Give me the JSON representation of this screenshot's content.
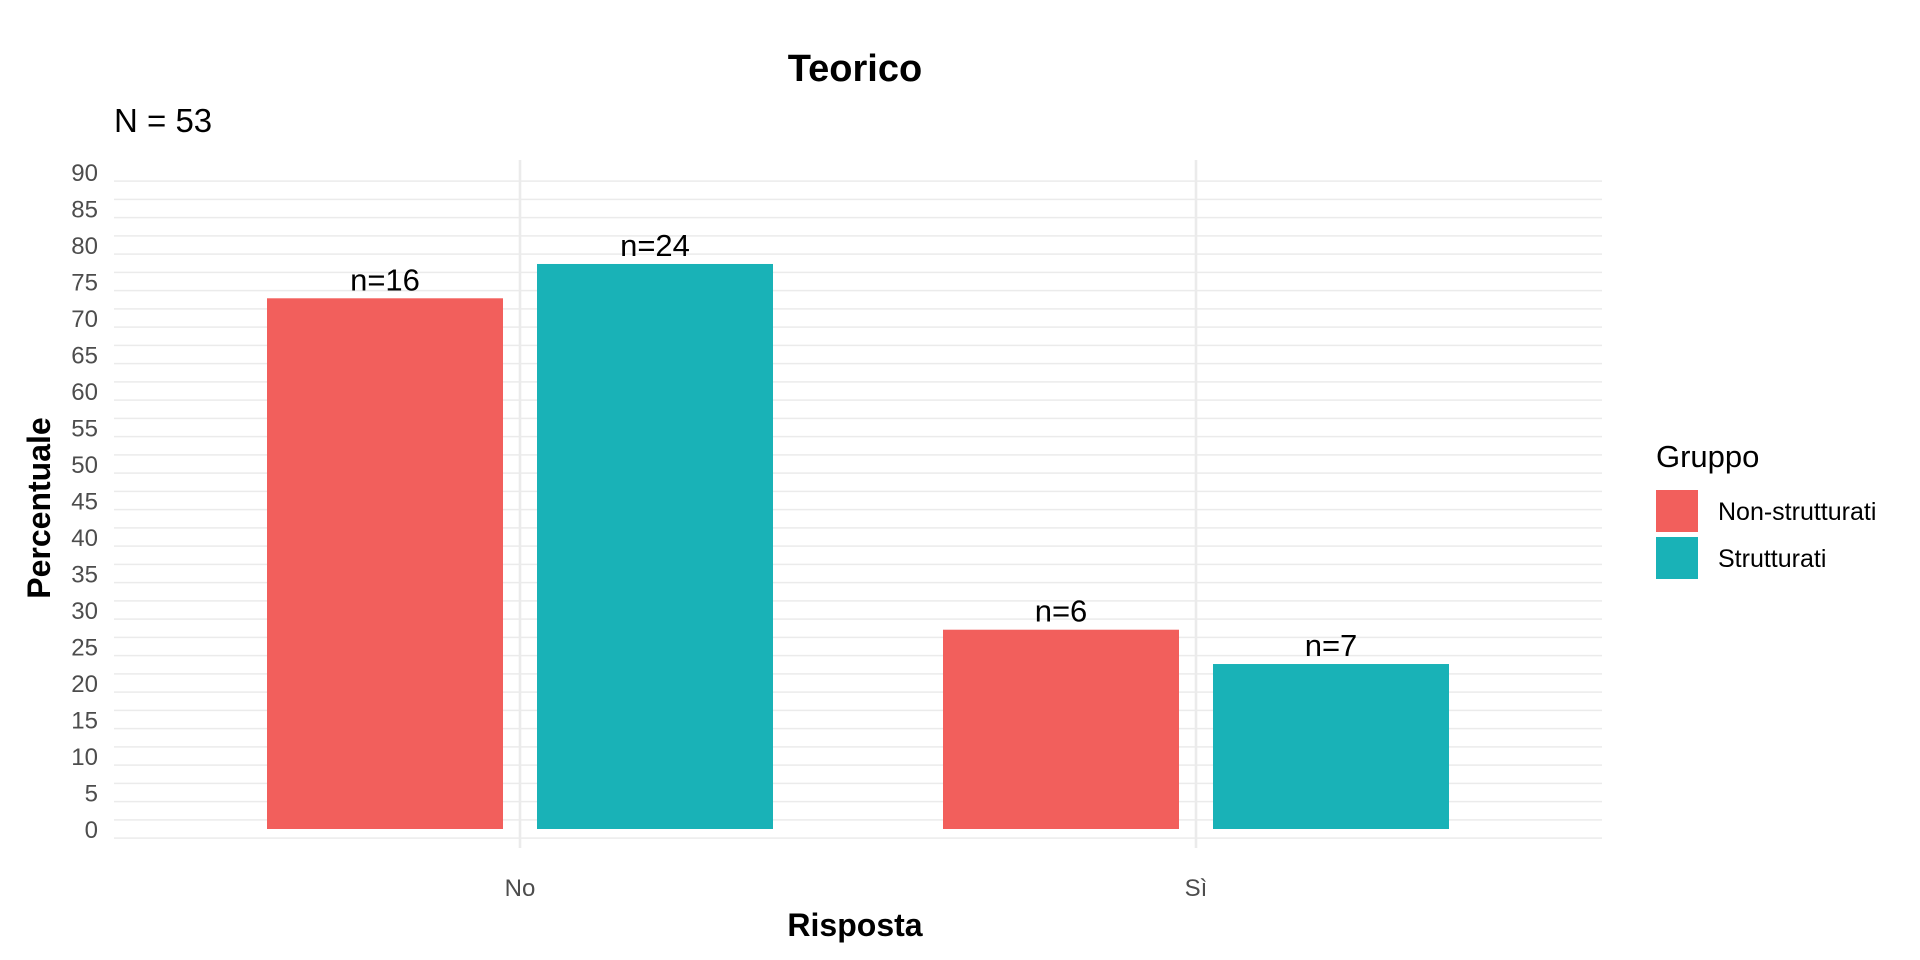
{
  "chart_data": {
    "type": "bar",
    "title": "Teorico",
    "subtitle": "N = 53",
    "xlabel": "Risposta",
    "ylabel": "Percentuale",
    "categories": [
      "No",
      "Sì"
    ],
    "series": [
      {
        "name": "Non-strutturati",
        "color": "#F25F5C",
        "values": [
          72.7,
          27.3
        ],
        "labels": [
          "n=16",
          "n=6"
        ]
      },
      {
        "name": "Strutturati",
        "color": "#19B2B7",
        "values": [
          77.4,
          22.6
        ],
        "labels": [
          "n=24",
          "n=7"
        ]
      }
    ],
    "ylim": [
      0,
      90
    ],
    "yticks": [
      0,
      5,
      10,
      15,
      20,
      25,
      30,
      35,
      40,
      45,
      50,
      55,
      60,
      65,
      70,
      75,
      80,
      85,
      90
    ],
    "grid": true,
    "legend": {
      "title": "Gruppo",
      "placement": "right"
    }
  }
}
